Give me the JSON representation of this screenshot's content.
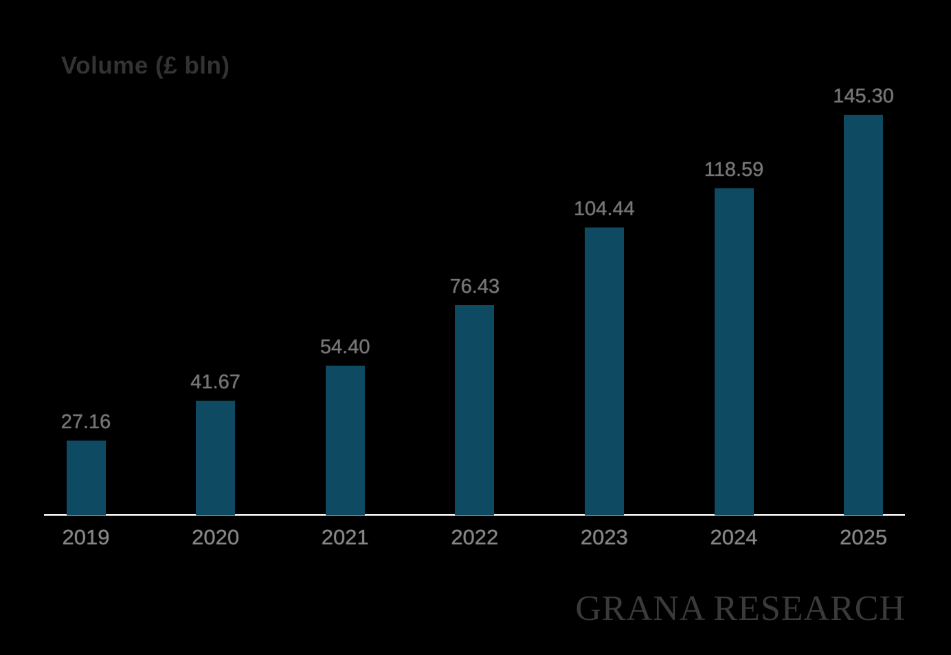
{
  "chart": {
    "title": "Volume (£ bln)",
    "watermark": "GRANA RESEARCH"
  },
  "chart_data": {
    "type": "bar",
    "title": "Volume (£ bln)",
    "xlabel": "",
    "ylabel": "Volume (£ bln)",
    "categories": [
      "2019",
      "2020",
      "2021",
      "2022",
      "2023",
      "2024",
      "2025"
    ],
    "values": [
      27.16,
      41.67,
      54.4,
      76.43,
      104.44,
      118.59,
      145.3
    ],
    "value_labels": [
      "27.16",
      "41.67",
      "54.40",
      "76.43",
      "104.44",
      "118.59",
      "145.30"
    ],
    "ylim": [
      0,
      150
    ],
    "grid": false,
    "legend": null,
    "y_axis_ticks_visible": false,
    "bar_color": "#0f4a63"
  },
  "style": {
    "background": "#000000",
    "bar_fill": "#0f4a63",
    "title_color": "#333333",
    "value_label_color": "#767676",
    "axis_label_color": "#868686",
    "axis_line_color": "#d8d8d8",
    "watermark_color": "#3a3a3c"
  }
}
